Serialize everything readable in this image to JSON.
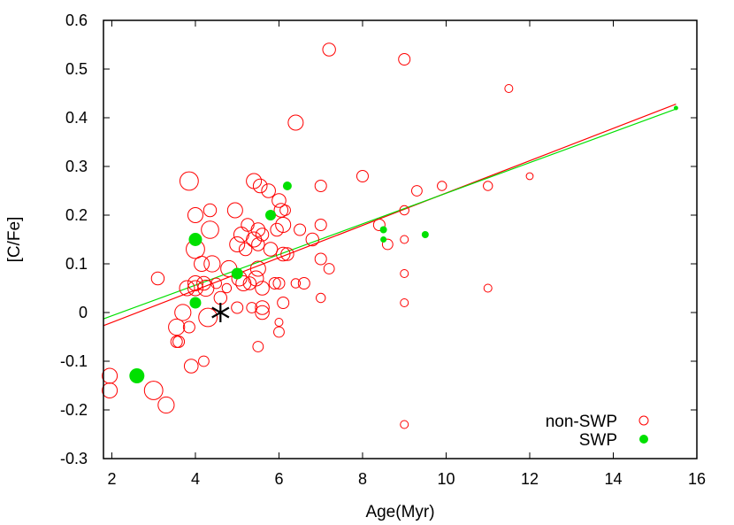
{
  "chart_data": {
    "type": "scatter",
    "xlabel": "Age(Myr)",
    "ylabel": "[C/Fe]",
    "xlim": [
      1.8,
      16
    ],
    "ylim": [
      -0.3,
      0.6
    ],
    "xticks": [
      "2",
      "4",
      "6",
      "8",
      "10",
      "12",
      "14",
      "16"
    ],
    "yticks": [
      "-0.3",
      "-0.2",
      "-0.1",
      "0",
      "0.1",
      "0.2",
      "0.3",
      "0.4",
      "0.5",
      "0.6"
    ],
    "legend_position": "bottom-right",
    "colors": {
      "non_swp": "#ff0000",
      "swp": "#00e000",
      "sun": "#000000"
    },
    "series": [
      {
        "name": "non-SWP",
        "marker": "open-circle",
        "points": [
          {
            "x": 1.95,
            "y": -0.13,
            "s": 1.3
          },
          {
            "x": 1.95,
            "y": -0.16,
            "s": 1.3
          },
          {
            "x": 3.0,
            "y": -0.16,
            "s": 1.6
          },
          {
            "x": 3.3,
            "y": -0.19,
            "s": 1.4
          },
          {
            "x": 3.1,
            "y": 0.07,
            "s": 1.1
          },
          {
            "x": 3.55,
            "y": -0.06,
            "s": 1.0
          },
          {
            "x": 3.55,
            "y": -0.03,
            "s": 1.4
          },
          {
            "x": 3.6,
            "y": -0.06,
            "s": 1.0
          },
          {
            "x": 3.7,
            "y": 0.0,
            "s": 1.4
          },
          {
            "x": 3.8,
            "y": 0.05,
            "s": 1.3
          },
          {
            "x": 3.85,
            "y": -0.03,
            "s": 1.0
          },
          {
            "x": 3.85,
            "y": 0.27,
            "s": 1.6
          },
          {
            "x": 3.9,
            "y": -0.11,
            "s": 1.2
          },
          {
            "x": 4.0,
            "y": 0.13,
            "s": 1.6
          },
          {
            "x": 4.0,
            "y": 0.2,
            "s": 1.3
          },
          {
            "x": 4.0,
            "y": 0.05,
            "s": 1.3
          },
          {
            "x": 4.0,
            "y": 0.06,
            "s": 1.3
          },
          {
            "x": 4.15,
            "y": 0.1,
            "s": 1.3
          },
          {
            "x": 4.2,
            "y": 0.06,
            "s": 1.2
          },
          {
            "x": 4.2,
            "y": -0.1,
            "s": 0.9
          },
          {
            "x": 4.25,
            "y": 0.05,
            "s": 1.4
          },
          {
            "x": 4.3,
            "y": -0.01,
            "s": 1.6
          },
          {
            "x": 4.35,
            "y": 0.17,
            "s": 1.5
          },
          {
            "x": 4.35,
            "y": 0.21,
            "s": 1.1
          },
          {
            "x": 4.4,
            "y": 0.1,
            "s": 1.4
          },
          {
            "x": 4.5,
            "y": 0.06,
            "s": 0.9
          },
          {
            "x": 4.6,
            "y": 0.03,
            "s": 1.1
          },
          {
            "x": 4.75,
            "y": 0.05,
            "s": 0.8
          },
          {
            "x": 4.8,
            "y": 0.09,
            "s": 1.4
          },
          {
            "x": 4.95,
            "y": 0.21,
            "s": 1.3
          },
          {
            "x": 5.0,
            "y": 0.01,
            "s": 1.0
          },
          {
            "x": 5.0,
            "y": 0.14,
            "s": 1.3
          },
          {
            "x": 5.05,
            "y": 0.07,
            "s": 1.3
          },
          {
            "x": 5.1,
            "y": 0.16,
            "s": 1.3
          },
          {
            "x": 5.15,
            "y": 0.06,
            "s": 1.3
          },
          {
            "x": 5.2,
            "y": 0.13,
            "s": 1.1
          },
          {
            "x": 5.25,
            "y": 0.18,
            "s": 1.1
          },
          {
            "x": 5.3,
            "y": 0.06,
            "s": 1.1
          },
          {
            "x": 5.35,
            "y": 0.01,
            "s": 0.9
          },
          {
            "x": 5.4,
            "y": 0.27,
            "s": 1.3
          },
          {
            "x": 5.4,
            "y": 0.15,
            "s": 1.3
          },
          {
            "x": 5.45,
            "y": 0.07,
            "s": 1.3
          },
          {
            "x": 5.5,
            "y": 0.09,
            "s": 1.3
          },
          {
            "x": 5.5,
            "y": 0.14,
            "s": 1.1
          },
          {
            "x": 5.5,
            "y": 0.17,
            "s": 1.2
          },
          {
            "x": 5.5,
            "y": -0.07,
            "s": 0.9
          },
          {
            "x": 5.55,
            "y": 0.26,
            "s": 1.2
          },
          {
            "x": 5.6,
            "y": 0.16,
            "s": 1.1
          },
          {
            "x": 5.6,
            "y": 0.05,
            "s": 1.2
          },
          {
            "x": 5.6,
            "y": 0.01,
            "s": 1.2
          },
          {
            "x": 5.6,
            "y": 0.0,
            "s": 1.2
          },
          {
            "x": 5.75,
            "y": 0.25,
            "s": 1.2
          },
          {
            "x": 5.8,
            "y": 0.13,
            "s": 1.2
          },
          {
            "x": 5.9,
            "y": 0.06,
            "s": 1.0
          },
          {
            "x": 5.95,
            "y": 0.17,
            "s": 1.1
          },
          {
            "x": 6.0,
            "y": 0.23,
            "s": 1.2
          },
          {
            "x": 6.0,
            "y": 0.06,
            "s": 1.0
          },
          {
            "x": 6.0,
            "y": -0.02,
            "s": 0.7
          },
          {
            "x": 6.0,
            "y": -0.04,
            "s": 0.9
          },
          {
            "x": 6.05,
            "y": 0.21,
            "s": 1.2
          },
          {
            "x": 6.1,
            "y": 0.18,
            "s": 1.3
          },
          {
            "x": 6.1,
            "y": 0.12,
            "s": 1.2
          },
          {
            "x": 6.1,
            "y": 0.02,
            "s": 1.0
          },
          {
            "x": 6.15,
            "y": 0.21,
            "s": 0.9
          },
          {
            "x": 6.2,
            "y": 0.12,
            "s": 1.1
          },
          {
            "x": 6.4,
            "y": 0.39,
            "s": 1.3
          },
          {
            "x": 6.4,
            "y": 0.06,
            "s": 0.8
          },
          {
            "x": 6.5,
            "y": 0.17,
            "s": 1.0
          },
          {
            "x": 6.6,
            "y": 0.06,
            "s": 1.0
          },
          {
            "x": 6.8,
            "y": 0.15,
            "s": 1.1
          },
          {
            "x": 7.0,
            "y": 0.26,
            "s": 1.0
          },
          {
            "x": 7.0,
            "y": 0.18,
            "s": 1.0
          },
          {
            "x": 7.0,
            "y": 0.11,
            "s": 1.0
          },
          {
            "x": 7.0,
            "y": 0.03,
            "s": 0.8
          },
          {
            "x": 7.2,
            "y": 0.54,
            "s": 1.1
          },
          {
            "x": 7.2,
            "y": 0.09,
            "s": 0.9
          },
          {
            "x": 8.0,
            "y": 0.28,
            "s": 1.0
          },
          {
            "x": 8.4,
            "y": 0.18,
            "s": 1.0
          },
          {
            "x": 8.6,
            "y": 0.14,
            "s": 0.9
          },
          {
            "x": 9.0,
            "y": 0.52,
            "s": 1.0
          },
          {
            "x": 9.0,
            "y": 0.21,
            "s": 0.8
          },
          {
            "x": 9.0,
            "y": 0.15,
            "s": 0.7
          },
          {
            "x": 9.0,
            "y": 0.08,
            "s": 0.7
          },
          {
            "x": 9.0,
            "y": 0.02,
            "s": 0.7
          },
          {
            "x": 9.0,
            "y": -0.23,
            "s": 0.7
          },
          {
            "x": 9.3,
            "y": 0.25,
            "s": 0.9
          },
          {
            "x": 9.9,
            "y": 0.26,
            "s": 0.8
          },
          {
            "x": 11.0,
            "y": 0.26,
            "s": 0.8
          },
          {
            "x": 11.0,
            "y": 0.05,
            "s": 0.7
          },
          {
            "x": 11.5,
            "y": 0.46,
            "s": 0.7
          },
          {
            "x": 12.0,
            "y": 0.28,
            "s": 0.6
          }
        ]
      },
      {
        "name": "SWP",
        "marker": "filled-circle",
        "points": [
          {
            "x": 2.6,
            "y": -0.13,
            "s": 1.7
          },
          {
            "x": 4.0,
            "y": 0.15,
            "s": 1.5
          },
          {
            "x": 4.0,
            "y": 0.02,
            "s": 1.3
          },
          {
            "x": 5.0,
            "y": 0.08,
            "s": 1.3
          },
          {
            "x": 5.8,
            "y": 0.2,
            "s": 1.2
          },
          {
            "x": 6.2,
            "y": 0.26,
            "s": 1.0
          },
          {
            "x": 8.5,
            "y": 0.17,
            "s": 0.8
          },
          {
            "x": 8.5,
            "y": 0.15,
            "s": 0.7
          },
          {
            "x": 9.5,
            "y": 0.16,
            "s": 0.8
          },
          {
            "x": 15.5,
            "y": 0.42,
            "s": 0.5
          }
        ]
      }
    ],
    "sun": {
      "x": 4.6,
      "y": 0.0
    },
    "fits": [
      {
        "series": "non-SWP",
        "color": "#ff0000",
        "x": [
          1.8,
          15.5
        ],
        "y": [
          -0.027,
          0.428
        ]
      },
      {
        "series": "SWP",
        "color": "#00e000",
        "x": [
          1.8,
          15.5
        ],
        "y": [
          -0.013,
          0.418
        ]
      }
    ]
  }
}
